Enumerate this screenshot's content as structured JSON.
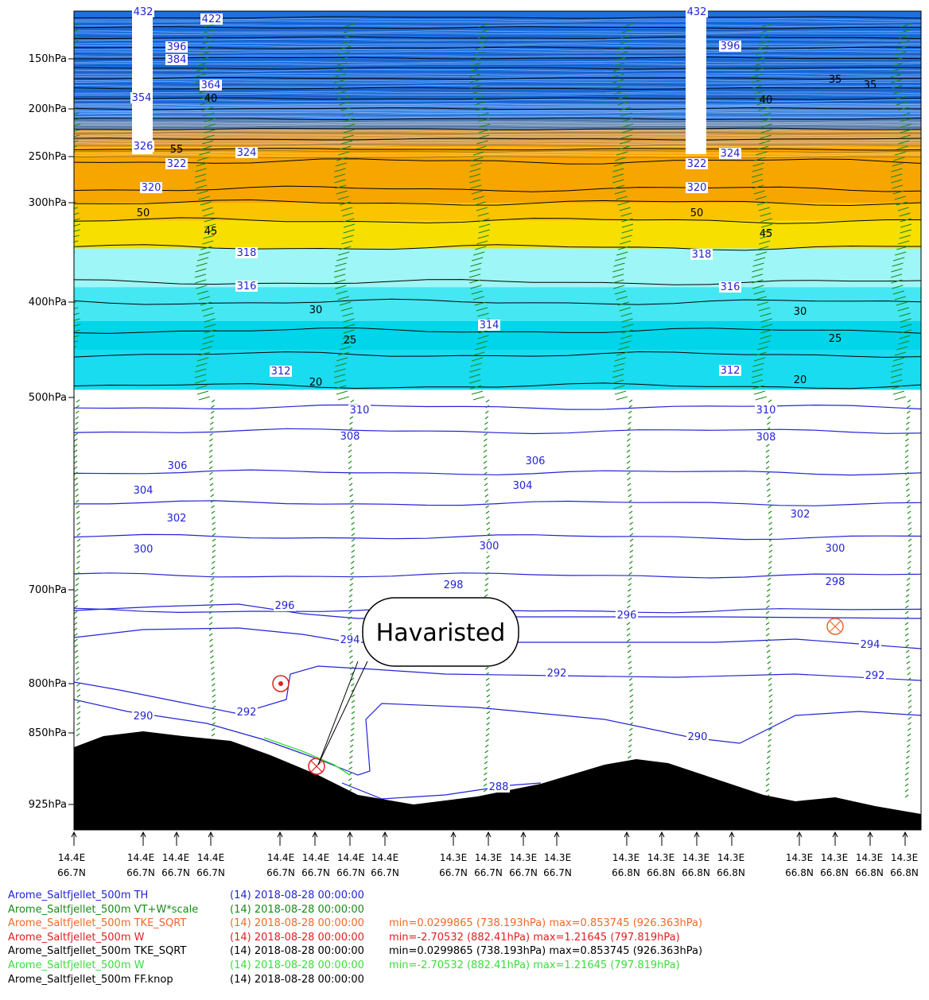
{
  "chart_data": {
    "type": "vertical cross-section",
    "y_axis_labels": [
      "150hPa",
      "200hPa",
      "250hPa",
      "300hPa",
      "400hPa",
      "500hPa",
      "700hPa",
      "800hPa",
      "850hPa",
      "925hPa"
    ],
    "y_axis_values": [
      150,
      200,
      250,
      300,
      400,
      500,
      700,
      800,
      850,
      925
    ],
    "x_positions": [
      {
        "lon": "14.4E",
        "lat": "66.7N"
      },
      {
        "lon": "14.4E",
        "lat": "66.7N"
      },
      {
        "lon": "14.4E",
        "lat": "66.7N"
      },
      {
        "lon": "14.4E",
        "lat": "66.7N"
      },
      {
        "lon": "14.4E",
        "lat": "66.7N"
      },
      {
        "lon": "14.4E",
        "lat": "66.7N"
      },
      {
        "lon": "14.4E",
        "lat": "66.7N"
      },
      {
        "lon": "14.4E",
        "lat": "66.7N"
      },
      {
        "lon": "14.3E",
        "lat": "66.7N"
      },
      {
        "lon": "14.3E",
        "lat": "66.7N"
      },
      {
        "lon": "14.3E",
        "lat": "66.7N"
      },
      {
        "lon": "14.3E",
        "lat": "66.7N"
      },
      {
        "lon": "14.3E",
        "lat": "66.8N"
      },
      {
        "lon": "14.3E",
        "lat": "66.8N"
      },
      {
        "lon": "14.3E",
        "lat": "66.8N"
      },
      {
        "lon": "14.3E",
        "lat": "66.8N"
      },
      {
        "lon": "14.3E",
        "lat": "66.8N"
      },
      {
        "lon": "14.3E",
        "lat": "66.8N"
      },
      {
        "lon": "14.3E",
        "lat": "66.8N"
      },
      {
        "lon": "14.3E",
        "lat": "66.8N"
      }
    ],
    "theta_contours": [
      {
        "value": "310",
        "pressure": 510
      },
      {
        "value": "308",
        "pressure": 535
      },
      {
        "value": "306",
        "pressure": 578
      },
      {
        "value": "304",
        "pressure": 610
      },
      {
        "value": "302",
        "pressure": 645
      },
      {
        "value": "300",
        "pressure": 685
      },
      {
        "value": "298",
        "pressure": 722
      },
      {
        "value": "296",
        "pressure": 758
      },
      {
        "value": "294",
        "pressure": 785
      },
      {
        "value": "292",
        "pressure": 840
      },
      {
        "value": "290",
        "pressure": 880
      },
      {
        "value": "288",
        "pressure": 915
      }
    ],
    "upper_theta_labels": [
      "432",
      "422",
      "396",
      "384",
      "364",
      "354",
      "326",
      "324",
      "322",
      "320",
      "318",
      "316",
      "314",
      "312"
    ],
    "ff_labels": [
      "55",
      "50",
      "45",
      "40",
      "35",
      "30",
      "25",
      "20"
    ],
    "wind_speed_bands": [
      {
        "label": "55",
        "color": "#1e6fe0"
      },
      {
        "label": "50",
        "color": "#f7a600"
      },
      {
        "label": "45",
        "color": "#f7d800"
      },
      {
        "label": "35",
        "color": "#9ef6f6"
      },
      {
        "label": "30",
        "color": "#44e7f2"
      },
      {
        "label": "25",
        "color": "#00d5ea"
      }
    ],
    "annotation": "Havaristed",
    "markers": [
      {
        "symbol": "dot-in-circle",
        "meaning": "flow out of page"
      },
      {
        "symbol": "cross-in-circle",
        "meaning": "flow into page"
      }
    ],
    "colors": {
      "theta": "#2323d6",
      "wind": "#1a8a1a",
      "terrain": "#000000",
      "marker": "#e02020",
      "cross_marker": "#f06a2a"
    }
  },
  "legend": [
    {
      "name": "Arome_Saltfjellet_500m  TH",
      "time": "(14) 2018-08-28 00:00:00",
      "stats": "",
      "color": "#2323d6"
    },
    {
      "name": "Arome_Saltfjellet_500m  VT+W*scale",
      "time": "(14) 2018-08-28 00:00:00",
      "stats": "",
      "color": "#1a8a1a"
    },
    {
      "name": "Arome_Saltfjellet_500m  TKE_SQRT",
      "time": "(14) 2018-08-28 00:00:00",
      "stats": "min=0.0299865 (738.193hPa) max=0.853745 (926.363hPa)",
      "color": "#f06a2a"
    },
    {
      "name": "Arome_Saltfjellet_500m  W",
      "time": "(14) 2018-08-28 00:00:00",
      "stats": "min=-2.70532 (882.41hPa) max=1.21645 (797.819hPa)",
      "color": "#e02020"
    },
    {
      "name": "Arome_Saltfjellet_500m  TKE_SQRT",
      "time": "(14) 2018-08-28 00:00:00",
      "stats": "min=0.0299865 (738.193hPa) max=0.853745 (926.363hPa)",
      "color": "#000000"
    },
    {
      "name": "Arome_Saltfjellet_500m  W",
      "time": "(14) 2018-08-28 00:00:00",
      "stats": "min=-2.70532 (882.41hPa) max=1.21645 (797.819hPa)",
      "color": "#3ddc3d"
    },
    {
      "name": "Arome_Saltfjellet_500m  FF.knop",
      "time": "(14) 2018-08-28 00:00:00",
      "stats": "",
      "color": "#000000"
    }
  ]
}
